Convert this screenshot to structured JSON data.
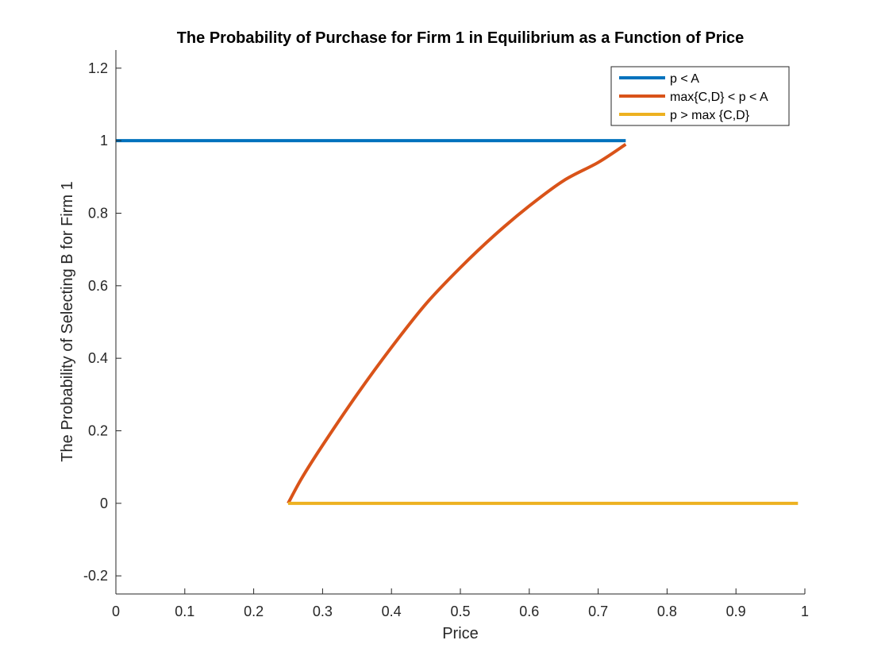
{
  "chart_data": {
    "type": "line",
    "title": "The Probability of Purchase for Firm 1 in Equilibrium as a Function of Price",
    "xlabel": "Price",
    "ylabel": "The Probability of Selecting B for Firm 1",
    "xlim": [
      0,
      1
    ],
    "ylim": [
      -0.25,
      1.25
    ],
    "xticks": [
      0,
      0.1,
      0.2,
      0.3,
      0.4,
      0.5,
      0.6,
      0.7,
      0.8,
      0.9,
      1
    ],
    "xtick_labels": [
      "0",
      "0.1",
      "0.2",
      "0.3",
      "0.4",
      "0.5",
      "0.6",
      "0.7",
      "0.8",
      "0.9",
      "1"
    ],
    "yticks": [
      -0.2,
      0,
      0.2,
      0.4,
      0.6,
      0.8,
      1,
      1.2
    ],
    "ytick_labels": [
      "-0.2",
      "0",
      "0.2",
      "0.4",
      "0.6",
      "0.8",
      "1",
      "1.2"
    ],
    "grid": false,
    "legend_position": "top-right",
    "series": [
      {
        "name": "p < A",
        "color": "#0072BD",
        "x": [
          0,
          0.74
        ],
        "y": [
          1,
          1
        ]
      },
      {
        "name": "max{C,D} < p < A",
        "color": "#D95319",
        "x": [
          0.25,
          0.27,
          0.3,
          0.35,
          0.4,
          0.45,
          0.5,
          0.55,
          0.6,
          0.65,
          0.7,
          0.74
        ],
        "y": [
          0,
          0.07,
          0.16,
          0.3,
          0.43,
          0.55,
          0.65,
          0.74,
          0.82,
          0.89,
          0.94,
          0.99
        ]
      },
      {
        "name": "p > max {C,D}",
        "color": "#EDB120",
        "x": [
          0.25,
          0.99
        ],
        "y": [
          0,
          0
        ]
      }
    ]
  }
}
